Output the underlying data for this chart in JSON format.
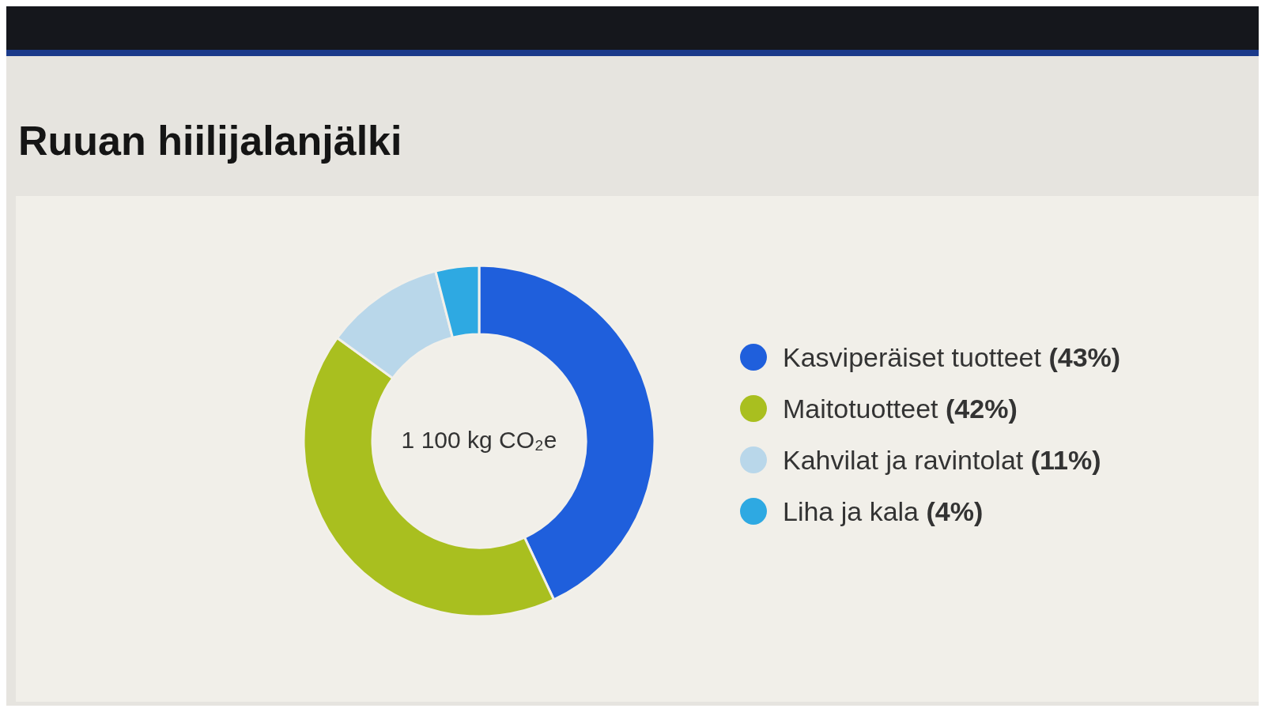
{
  "chart_data": {
    "type": "donut",
    "title": "Ruuan hiilijalanjälki",
    "categories": [
      "Kasviperäiset tuotteet",
      "Maitotuotteet",
      "Kahvilat ja ravintolat",
      "Liha ja kala"
    ],
    "values": [
      43,
      42,
      11,
      4
    ],
    "value_labels": [
      "(43%)",
      "(42%)",
      "(11%)",
      "(4%)"
    ],
    "colors": [
      "#1f5fdc",
      "#a9bf1f",
      "#b9d7ea",
      "#2ea9e2"
    ],
    "annotations": [
      "1 100 kg CO₂e"
    ],
    "legend": "right"
  }
}
